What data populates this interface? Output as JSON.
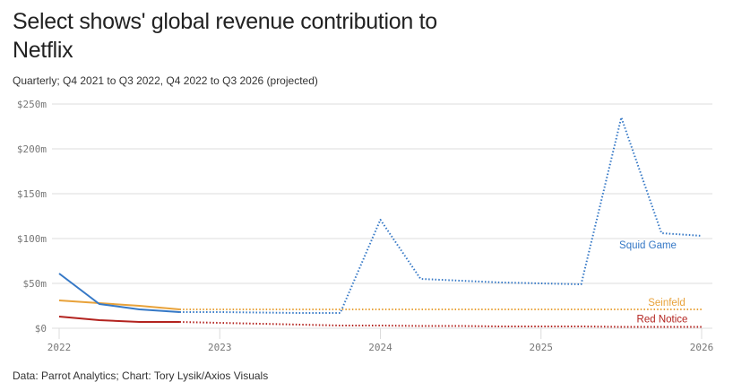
{
  "header": {
    "title": "Select shows' global revenue contribution to Netflix",
    "subtitle": "Quarterly; Q4 2021 to Q3 2022, Q4 2022 to Q3 2026 (projected)"
  },
  "footer": {
    "source": "Data: Parrot Analytics; Chart: Tory Lysik/Axios Visuals"
  },
  "chart_data": {
    "type": "line",
    "title": "Select shows' global revenue contribution to Netflix",
    "subtitle": "Quarterly; Q4 2021 to Q3 2022, Q4 2022 to Q3 2026 (projected)",
    "xlabel": "",
    "ylabel": "",
    "x": [
      2022,
      2022.25,
      2022.5,
      2022.75,
      2023,
      2023.25,
      2023.5,
      2023.75,
      2024,
      2024.25,
      2024.5,
      2024.75,
      2025,
      2025.25,
      2025.5,
      2025.75,
      2026
    ],
    "x_ticks": [
      "2022",
      "2023",
      "2024",
      "2025",
      "2026"
    ],
    "x_tick_values": [
      2022,
      2023,
      2024,
      2025,
      2026
    ],
    "xlim": [
      2022,
      2026
    ],
    "ylim": [
      0,
      250
    ],
    "y_ticks": [
      "$0",
      "$50m",
      "$100m",
      "$150m",
      "$200m",
      "$250m"
    ],
    "y_tick_values": [
      0,
      50,
      100,
      150,
      200,
      250
    ],
    "unit": "millions USD",
    "grid": true,
    "legend": "inline labels at right end of each line",
    "projected_from_index": 3,
    "series": [
      {
        "name": "Squid Game",
        "color": "#3578c6",
        "values": [
          61,
          27,
          21,
          18,
          18,
          17.5,
          17,
          17,
          121,
          55,
          53,
          51,
          50,
          49,
          235,
          106,
          103
        ]
      },
      {
        "name": "Seinfeld",
        "color": "#e8a23a",
        "values": [
          31,
          28,
          25,
          21,
          21,
          21,
          21,
          21,
          21,
          21,
          21,
          21,
          21,
          21,
          21,
          21,
          21
        ]
      },
      {
        "name": "Red Notice",
        "color": "#b3231f",
        "values": [
          13,
          9,
          7,
          7,
          6,
          5,
          4,
          3,
          3,
          2.5,
          2.5,
          2,
          2,
          2,
          1.5,
          1.5,
          1.5
        ]
      }
    ]
  }
}
